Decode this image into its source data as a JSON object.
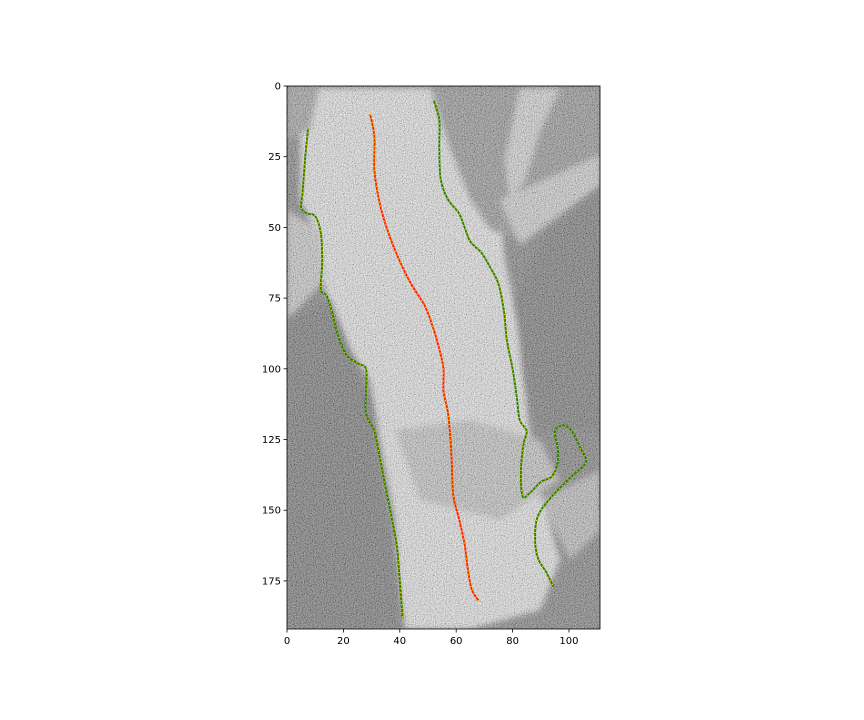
{
  "chart_data": {
    "type": "image",
    "title": "",
    "xlabel": "",
    "ylabel": "",
    "xlim": [
      0,
      111
    ],
    "ylim": [
      192,
      0
    ],
    "y_inverted": true,
    "grid": false,
    "legend": "none",
    "x_ticks": [
      0,
      20,
      40,
      60,
      80,
      100
    ],
    "y_ticks": [
      0,
      25,
      50,
      75,
      100,
      125,
      150,
      175
    ],
    "background": "grayscale speckled satellite-style image with a bright river-like band",
    "series": [
      {
        "role": "left-bank",
        "color": "#2e7d00",
        "marker_color": "#ffe000",
        "points": [
          [
            7.5,
            15
          ],
          [
            6.5,
            25
          ],
          [
            5.5,
            38
          ],
          [
            5,
            43
          ],
          [
            7,
            45
          ],
          [
            10,
            46
          ],
          [
            12,
            52
          ],
          [
            12.5,
            62
          ],
          [
            12,
            72
          ],
          [
            14,
            74
          ],
          [
            16,
            80
          ],
          [
            18,
            88
          ],
          [
            21,
            95
          ],
          [
            25,
            98
          ],
          [
            28,
            100
          ],
          [
            28,
            108
          ],
          [
            28,
            116
          ],
          [
            31,
            122
          ],
          [
            33,
            132
          ],
          [
            35,
            142
          ],
          [
            37,
            152
          ],
          [
            39,
            163
          ],
          [
            40,
            175
          ],
          [
            41,
            188
          ]
        ]
      },
      {
        "role": "centerline",
        "color": "#ff2000",
        "marker_color": "#ffe000",
        "points": [
          [
            29.5,
            10
          ],
          [
            31,
            18
          ],
          [
            31,
            30
          ],
          [
            33,
            42
          ],
          [
            36,
            52
          ],
          [
            40,
            62
          ],
          [
            44,
            70
          ],
          [
            49,
            78
          ],
          [
            52,
            86
          ],
          [
            54,
            93
          ],
          [
            55.5,
            100
          ],
          [
            55.5,
            108
          ],
          [
            57,
            115
          ],
          [
            58,
            125
          ],
          [
            58.5,
            135
          ],
          [
            59,
            145
          ],
          [
            61,
            153
          ],
          [
            63,
            162
          ],
          [
            64,
            170
          ],
          [
            65.5,
            178
          ],
          [
            68,
            182
          ]
        ]
      },
      {
        "role": "right-bank",
        "color": "#2e7d00",
        "marker_color": "#ffe000",
        "points": [
          [
            52,
            5
          ],
          [
            54,
            12
          ],
          [
            54,
            22
          ],
          [
            54.5,
            33
          ],
          [
            57,
            40
          ],
          [
            61,
            45
          ],
          [
            63,
            50
          ],
          [
            65,
            55
          ],
          [
            69,
            59
          ],
          [
            72,
            64
          ],
          [
            75,
            70
          ],
          [
            77,
            80
          ],
          [
            78,
            90
          ],
          [
            80,
            100
          ],
          [
            81.5,
            110
          ],
          [
            82.5,
            118
          ],
          [
            85,
            122
          ],
          [
            84,
            126
          ],
          [
            83,
            135
          ],
          [
            83.5,
            145
          ],
          [
            86,
            144
          ],
          [
            90,
            140
          ],
          [
            94,
            138
          ],
          [
            96,
            133
          ],
          [
            96,
            128
          ],
          [
            95,
            122
          ],
          [
            98,
            120
          ],
          [
            101,
            122
          ],
          [
            104,
            128
          ],
          [
            106,
            133
          ],
          [
            101,
            138
          ],
          [
            94,
            145
          ],
          [
            89,
            152
          ],
          [
            88,
            160
          ],
          [
            89,
            167
          ],
          [
            92,
            172
          ],
          [
            94.5,
            177
          ]
        ]
      }
    ]
  }
}
